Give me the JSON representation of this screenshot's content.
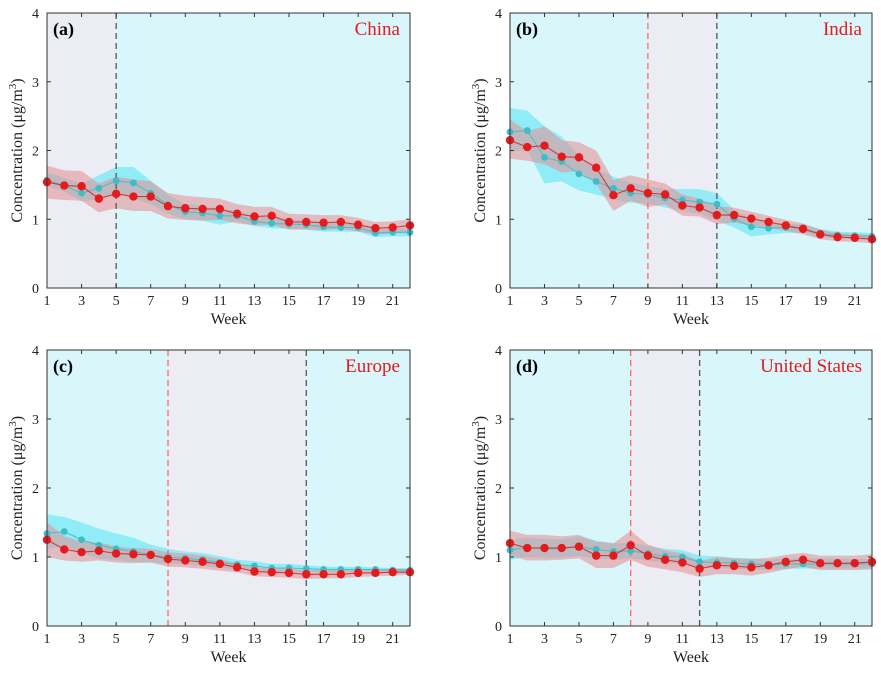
{
  "colors": {
    "background_shade": "#d9f6fb",
    "period_shade": "#ecedf4",
    "red_series": "#e41a1c",
    "red_band": "#e58c92",
    "cyan_series": "#3fbcc6",
    "cyan_band": "#5fe8f5",
    "red_dash": "#ff6666",
    "black_dash": "#555555"
  },
  "chart_data": [
    {
      "type": "line",
      "panel": "(a)",
      "region": "China",
      "xlabel": "Week",
      "ylabel": "Concentration (μg/m3)",
      "xlim": [
        1,
        22
      ],
      "ylim": [
        0,
        4
      ],
      "xticks": [
        1,
        3,
        5,
        7,
        9,
        11,
        13,
        15,
        17,
        19,
        21
      ],
      "yticks": [
        0,
        1,
        2,
        3,
        4
      ],
      "shaded_period": [
        1,
        5
      ],
      "dashed_lines": [
        {
          "x": 5,
          "color": "black"
        }
      ],
      "x": [
        1,
        2,
        3,
        4,
        5,
        6,
        7,
        8,
        9,
        10,
        11,
        12,
        13,
        14,
        15,
        16,
        17,
        18,
        19,
        20,
        21,
        22
      ],
      "series": [
        {
          "color": "red",
          "values": [
            1.54,
            1.49,
            1.48,
            1.3,
            1.37,
            1.33,
            1.33,
            1.19,
            1.16,
            1.15,
            1.15,
            1.08,
            1.04,
            1.05,
            0.96,
            0.96,
            0.95,
            0.96,
            0.92,
            0.87,
            0.88,
            0.91
          ],
          "upper": [
            1.78,
            1.71,
            1.7,
            1.52,
            1.62,
            1.58,
            1.55,
            1.38,
            1.34,
            1.32,
            1.3,
            1.22,
            1.18,
            1.18,
            1.08,
            1.07,
            1.06,
            1.06,
            1.02,
            0.96,
            0.97,
            1.0
          ],
          "lower": [
            1.3,
            1.28,
            1.27,
            1.1,
            1.16,
            1.12,
            1.12,
            1.01,
            0.99,
            0.98,
            0.99,
            0.94,
            0.91,
            0.92,
            0.85,
            0.85,
            0.84,
            0.86,
            0.82,
            0.78,
            0.79,
            0.82
          ]
        },
        {
          "color": "cyan",
          "values": [
            1.57,
            1.49,
            1.38,
            1.45,
            1.56,
            1.53,
            1.38,
            1.21,
            1.11,
            1.09,
            1.05,
            1.05,
            0.97,
            0.94,
            0.93,
            0.92,
            0.89,
            0.88,
            0.88,
            0.8,
            0.81,
            0.81
          ],
          "upper": [
            1.68,
            1.6,
            1.52,
            1.64,
            1.76,
            1.76,
            1.56,
            1.36,
            1.22,
            1.2,
            1.14,
            1.13,
            1.05,
            1.02,
            1.0,
            0.99,
            0.96,
            0.95,
            0.95,
            0.86,
            0.87,
            0.87
          ],
          "lower": [
            1.48,
            1.4,
            1.26,
            1.29,
            1.38,
            1.3,
            1.22,
            1.08,
            1.0,
            0.98,
            0.92,
            0.97,
            0.9,
            0.87,
            0.86,
            0.85,
            0.82,
            0.82,
            0.82,
            0.74,
            0.75,
            0.75
          ]
        }
      ]
    },
    {
      "type": "line",
      "panel": "(b)",
      "region": "India",
      "xlabel": "Week",
      "ylabel": "Concentration (μg/m3)",
      "xlim": [
        1,
        22
      ],
      "ylim": [
        0,
        4
      ],
      "xticks": [
        1,
        3,
        5,
        7,
        9,
        11,
        13,
        15,
        17,
        19,
        21
      ],
      "yticks": [
        0,
        1,
        2,
        3,
        4
      ],
      "shaded_period": [
        9,
        13
      ],
      "dashed_lines": [
        {
          "x": 9,
          "color": "red"
        },
        {
          "x": 13,
          "color": "black"
        }
      ],
      "x": [
        1,
        2,
        3,
        4,
        5,
        6,
        7,
        8,
        9,
        10,
        11,
        12,
        13,
        14,
        15,
        16,
        17,
        18,
        19,
        20,
        21,
        22
      ],
      "series": [
        {
          "color": "red",
          "values": [
            2.15,
            2.05,
            2.07,
            1.91,
            1.9,
            1.75,
            1.35,
            1.45,
            1.38,
            1.36,
            1.2,
            1.17,
            1.06,
            1.06,
            1.01,
            0.96,
            0.91,
            0.86,
            0.78,
            0.74,
            0.73,
            0.71
          ],
          "upper": [
            2.45,
            2.28,
            2.35,
            2.15,
            2.12,
            2.0,
            1.57,
            1.64,
            1.58,
            1.52,
            1.36,
            1.3,
            1.19,
            1.17,
            1.11,
            1.05,
            0.99,
            0.94,
            0.85,
            0.8,
            0.79,
            0.77
          ],
          "lower": [
            1.88,
            1.85,
            1.8,
            1.68,
            1.7,
            1.52,
            1.12,
            1.27,
            1.18,
            1.21,
            1.05,
            1.04,
            0.93,
            0.95,
            0.91,
            0.87,
            0.83,
            0.78,
            0.71,
            0.68,
            0.67,
            0.65
          ]
        },
        {
          "color": "cyan",
          "values": [
            2.27,
            2.29,
            1.9,
            1.84,
            1.66,
            1.55,
            1.45,
            1.38,
            1.36,
            1.31,
            1.28,
            1.25,
            1.22,
            1.01,
            0.89,
            0.87,
            0.88,
            0.87,
            0.79,
            0.77,
            0.76,
            0.75
          ],
          "upper": [
            2.62,
            2.58,
            2.35,
            2.2,
            1.93,
            1.73,
            1.62,
            1.53,
            1.48,
            1.44,
            1.44,
            1.44,
            1.38,
            1.14,
            1.0,
            0.96,
            0.94,
            0.92,
            0.86,
            0.82,
            0.81,
            0.8
          ],
          "lower": [
            1.98,
            2.01,
            1.52,
            1.55,
            1.42,
            1.36,
            1.29,
            1.24,
            1.23,
            1.17,
            1.12,
            1.08,
            0.98,
            0.88,
            0.75,
            0.78,
            0.8,
            0.8,
            0.74,
            0.72,
            0.71,
            0.7
          ]
        }
      ]
    },
    {
      "type": "line",
      "panel": "(c)",
      "region": "Europe",
      "xlabel": "Week",
      "ylabel": "Concentration (μg/m3)",
      "xlim": [
        1,
        22
      ],
      "ylim": [
        0,
        4
      ],
      "xticks": [
        1,
        3,
        5,
        7,
        9,
        11,
        13,
        15,
        17,
        19,
        21
      ],
      "yticks": [
        0,
        1,
        2,
        3,
        4
      ],
      "shaded_period": [
        8,
        16
      ],
      "dashed_lines": [
        {
          "x": 8,
          "color": "red"
        },
        {
          "x": 16,
          "color": "black"
        }
      ],
      "x": [
        1,
        2,
        3,
        4,
        5,
        6,
        7,
        8,
        9,
        10,
        11,
        12,
        13,
        14,
        15,
        16,
        17,
        18,
        19,
        20,
        21,
        22
      ],
      "series": [
        {
          "color": "red",
          "values": [
            1.25,
            1.11,
            1.07,
            1.09,
            1.05,
            1.04,
            1.03,
            0.97,
            0.95,
            0.93,
            0.9,
            0.85,
            0.79,
            0.78,
            0.77,
            0.75,
            0.75,
            0.75,
            0.77,
            0.77,
            0.78,
            0.78
          ],
          "upper": [
            1.5,
            1.3,
            1.22,
            1.21,
            1.15,
            1.13,
            1.12,
            1.07,
            1.05,
            1.02,
            0.97,
            0.91,
            0.85,
            0.84,
            0.83,
            0.81,
            0.81,
            0.81,
            0.82,
            0.82,
            0.83,
            0.82
          ],
          "lower": [
            1.0,
            0.95,
            0.93,
            0.95,
            0.92,
            0.91,
            0.92,
            0.86,
            0.85,
            0.83,
            0.8,
            0.78,
            0.72,
            0.71,
            0.7,
            0.68,
            0.69,
            0.69,
            0.71,
            0.72,
            0.73,
            0.74
          ]
        },
        {
          "color": "cyan",
          "values": [
            1.34,
            1.37,
            1.25,
            1.17,
            1.12,
            1.08,
            1.03,
            1.0,
            0.98,
            0.96,
            0.92,
            0.89,
            0.87,
            0.84,
            0.84,
            0.83,
            0.82,
            0.82,
            0.82,
            0.82,
            0.81,
            0.81
          ],
          "upper": [
            1.62,
            1.58,
            1.5,
            1.41,
            1.34,
            1.28,
            1.18,
            1.12,
            1.08,
            1.06,
            1.01,
            0.96,
            0.94,
            0.9,
            0.9,
            0.88,
            0.86,
            0.86,
            0.86,
            0.85,
            0.84,
            0.84
          ],
          "lower": [
            1.12,
            1.16,
            1.05,
            0.98,
            0.95,
            0.93,
            0.92,
            0.91,
            0.89,
            0.87,
            0.84,
            0.82,
            0.8,
            0.78,
            0.78,
            0.78,
            0.78,
            0.78,
            0.78,
            0.78,
            0.77,
            0.77
          ]
        }
      ]
    },
    {
      "type": "line",
      "panel": "(d)",
      "region": "United States",
      "xlabel": "Week",
      "ylabel": "Concentration (μg/m3)",
      "xlim": [
        1,
        22
      ],
      "ylim": [
        0,
        4
      ],
      "xticks": [
        1,
        3,
        5,
        7,
        9,
        11,
        13,
        15,
        17,
        19,
        21
      ],
      "yticks": [
        0,
        1,
        2,
        3,
        4
      ],
      "shaded_period": [
        8,
        12
      ],
      "dashed_lines": [
        {
          "x": 8,
          "color": "red"
        },
        {
          "x": 12,
          "color": "black"
        }
      ],
      "x": [
        1,
        2,
        3,
        4,
        5,
        6,
        7,
        8,
        9,
        10,
        11,
        12,
        13,
        14,
        15,
        16,
        17,
        18,
        19,
        20,
        21,
        22
      ],
      "series": [
        {
          "color": "red",
          "values": [
            1.2,
            1.13,
            1.13,
            1.13,
            1.15,
            1.02,
            1.02,
            1.17,
            1.02,
            0.96,
            0.92,
            0.83,
            0.88,
            0.87,
            0.85,
            0.88,
            0.93,
            0.96,
            0.91,
            0.91,
            0.91,
            0.93
          ],
          "upper": [
            1.38,
            1.32,
            1.32,
            1.3,
            1.32,
            1.22,
            1.2,
            1.38,
            1.18,
            1.1,
            1.05,
            0.94,
            1.0,
            0.98,
            0.97,
            0.99,
            1.03,
            1.06,
            1.02,
            1.02,
            1.02,
            1.04
          ],
          "lower": [
            1.02,
            0.95,
            0.95,
            0.96,
            0.98,
            0.84,
            0.84,
            0.96,
            0.86,
            0.82,
            0.78,
            0.71,
            0.75,
            0.75,
            0.73,
            0.77,
            0.82,
            0.86,
            0.81,
            0.81,
            0.81,
            0.82
          ]
        },
        {
          "color": "cyan",
          "values": [
            1.1,
            1.14,
            1.12,
            1.12,
            1.15,
            1.11,
            1.08,
            1.09,
            1.05,
            1.01,
            1.0,
            0.93,
            0.92,
            0.91,
            0.9,
            0.88,
            0.9,
            0.9,
            0.9,
            0.9,
            0.9,
            0.9
          ],
          "upper": [
            1.25,
            1.28,
            1.26,
            1.26,
            1.3,
            1.24,
            1.2,
            1.2,
            1.16,
            1.12,
            1.1,
            1.02,
            1.01,
            0.99,
            0.98,
            0.96,
            0.98,
            0.98,
            0.98,
            0.98,
            0.97,
            0.97
          ],
          "lower": [
            0.96,
            1.0,
            0.99,
            0.99,
            1.01,
            0.98,
            0.96,
            0.98,
            0.95,
            0.91,
            0.9,
            0.85,
            0.84,
            0.83,
            0.82,
            0.81,
            0.83,
            0.83,
            0.83,
            0.83,
            0.83,
            0.83
          ]
        }
      ]
    }
  ]
}
